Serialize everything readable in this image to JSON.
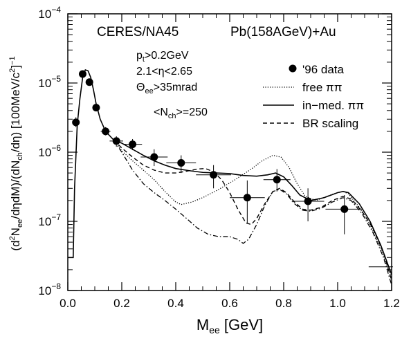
{
  "chart_data": {
    "type": "line",
    "x_axis": {
      "label_main": "M",
      "label_sub": "ee",
      "label_unit": " [GeV]",
      "range": [
        0.0,
        1.2
      ],
      "ticks": [
        {
          "v": 0.0,
          "label": "0.0"
        },
        {
          "v": 0.2,
          "label": "0.2"
        },
        {
          "v": 0.4,
          "label": "0.4"
        },
        {
          "v": 0.6,
          "label": "0.6"
        },
        {
          "v": 0.8,
          "label": "0.8"
        },
        {
          "v": 1.0,
          "label": "1.0"
        },
        {
          "v": 1.2,
          "label": "1.2"
        }
      ]
    },
    "y_axis": {
      "scale": "log",
      "range": [
        1e-08,
        0.0001
      ],
      "label": "(d²N_ee/dηdM)/(dN_ch/dη) [100MeV/c²]⁻¹",
      "ticks": [
        {
          "v": 1e-08,
          "base": "10",
          "exp": "−8"
        },
        {
          "v": 1e-07,
          "base": "10",
          "exp": "−7"
        },
        {
          "v": 1e-06,
          "base": "10",
          "exp": "−6"
        },
        {
          "v": 1e-05,
          "base": "10",
          "exp": "−5"
        },
        {
          "v": 0.0001,
          "base": "10",
          "exp": "−4"
        }
      ]
    },
    "annotations": {
      "experiment": "CERES/NA45",
      "collision": "Pb(158AGeV)+Au",
      "cut_pt": "p_t>0.2GeV",
      "cut_eta": "2.1<η<2.65",
      "cut_theta": "Θ_ee>35mrad",
      "nch": "<N_ch>=250"
    },
    "legend": [
      {
        "label": "'96 data",
        "style": "marker"
      },
      {
        "label": "free ππ",
        "style": "dotted"
      },
      {
        "label": "in−med. ππ",
        "style": "solid"
      },
      {
        "label": "BR scaling",
        "style": "dashed"
      }
    ],
    "data_points": [
      {
        "x": 0.03,
        "y": 2.7e-06,
        "xerr": 0.01,
        "ylo": 2.3e-06,
        "yhi": 3.2e-06
      },
      {
        "x": 0.055,
        "y": 1.35e-05,
        "xerr": 0.01,
        "ylo": 1.2e-05,
        "yhi": 1.5e-05
      },
      {
        "x": 0.08,
        "y": 1.03e-05,
        "xerr": 0.01,
        "ylo": 9.3e-06,
        "yhi": 1.14e-05
      },
      {
        "x": 0.105,
        "y": 4.4e-06,
        "xerr": 0.012,
        "ylo": 4e-06,
        "yhi": 4.9e-06
      },
      {
        "x": 0.14,
        "y": 2e-06,
        "xerr": 0.018,
        "ylo": 1.75e-06,
        "yhi": 2.3e-06
      },
      {
        "x": 0.18,
        "y": 1.45e-06,
        "xerr": 0.025,
        "ylo": 1.2e-06,
        "yhi": 1.7e-06
      },
      {
        "x": 0.24,
        "y": 1.3e-06,
        "xerr": 0.035,
        "ylo": 1.07e-06,
        "yhi": 1.55e-06
      },
      {
        "x": 0.32,
        "y": 8.5e-07,
        "xerr": 0.05,
        "ylo": 6.3e-07,
        "yhi": 1.1e-06
      },
      {
        "x": 0.42,
        "y": 7e-07,
        "xerr": 0.055,
        "ylo": 5e-07,
        "yhi": 9e-07
      },
      {
        "x": 0.54,
        "y": 4.7e-07,
        "xerr": 0.065,
        "ylo": 3e-07,
        "yhi": 6.5e-07
      },
      {
        "x": 0.665,
        "y": 2.2e-07,
        "xerr": 0.065,
        "ylo": 9.5e-08,
        "yhi": 3.9e-07
      },
      {
        "x": 0.775,
        "y": 4e-07,
        "xerr": 0.05,
        "ylo": 2.7e-07,
        "yhi": 5.7e-07
      },
      {
        "x": 0.89,
        "y": 1.95e-07,
        "xerr": 0.06,
        "ylo": 1e-07,
        "yhi": 3e-07
      },
      {
        "x": 1.025,
        "y": 1.5e-07,
        "xerr": 0.07,
        "ylo": 6.5e-08,
        "yhi": 2.4e-07
      },
      {
        "x": 1.16,
        "y": 2.2e-08,
        "xerr": 0.045,
        "ylo": 2.2e-08,
        "yhi": 2.2e-08
      }
    ],
    "curve_common": [
      [
        0.0,
        3e-08
      ],
      [
        0.02,
        3e-08
      ],
      [
        0.025,
        3e-07
      ],
      [
        0.035,
        2.5e-06
      ],
      [
        0.045,
        6e-06
      ],
      [
        0.055,
        1.2e-05
      ],
      [
        0.065,
        1.55e-05
      ],
      [
        0.075,
        1.5e-05
      ],
      [
        0.085,
        1.2e-05
      ],
      [
        0.095,
        8e-06
      ],
      [
        0.105,
        5e-06
      ],
      [
        0.12,
        3e-06
      ],
      [
        0.14,
        2e-06
      ],
      [
        0.17,
        1.5e-06
      ]
    ],
    "series": [
      {
        "name": "free ππ",
        "style": "dotted",
        "points": [
          [
            0.17,
            1.5e-06
          ],
          [
            0.2,
            1.05e-06
          ],
          [
            0.24,
            7.5e-07
          ],
          [
            0.28,
            5.5e-07
          ],
          [
            0.32,
            4e-07
          ],
          [
            0.36,
            2.7e-07
          ],
          [
            0.4,
            1.9e-07
          ],
          [
            0.42,
            1.75e-07
          ],
          [
            0.46,
            1.9e-07
          ],
          [
            0.5,
            2.2e-07
          ],
          [
            0.56,
            2.9e-07
          ],
          [
            0.62,
            4e-07
          ],
          [
            0.68,
            5.7e-07
          ],
          [
            0.72,
            7.5e-07
          ],
          [
            0.76,
            9e-07
          ],
          [
            0.79,
            8.5e-07
          ],
          [
            0.82,
            6e-07
          ],
          [
            0.85,
            3.5e-07
          ],
          [
            0.88,
            2.3e-07
          ],
          [
            0.92,
            2e-07
          ],
          [
            0.96,
            2.3e-07
          ],
          [
            1.0,
            2.6e-07
          ],
          [
            1.02,
            2.7e-07
          ],
          [
            1.04,
            2.5e-07
          ],
          [
            1.08,
            1.6e-07
          ],
          [
            1.12,
            9e-08
          ],
          [
            1.16,
            4e-08
          ],
          [
            1.2,
            1.5e-08
          ]
        ]
      },
      {
        "name": "in−med. ππ",
        "style": "solid",
        "points": [
          [
            0.17,
            1.5e-06
          ],
          [
            0.2,
            1.35e-06
          ],
          [
            0.24,
            1.1e-06
          ],
          [
            0.28,
            9e-07
          ],
          [
            0.32,
            7.5e-07
          ],
          [
            0.36,
            6.5e-07
          ],
          [
            0.4,
            5.8e-07
          ],
          [
            0.45,
            5.4e-07
          ],
          [
            0.5,
            5.1e-07
          ],
          [
            0.55,
            5e-07
          ],
          [
            0.6,
            4.9e-07
          ],
          [
            0.65,
            4.6e-07
          ],
          [
            0.7,
            4.5e-07
          ],
          [
            0.74,
            4.7e-07
          ],
          [
            0.77,
            5e-07
          ],
          [
            0.8,
            4.4e-07
          ],
          [
            0.83,
            3.3e-07
          ],
          [
            0.86,
            2.4e-07
          ],
          [
            0.9,
            2e-07
          ],
          [
            0.95,
            2.2e-07
          ],
          [
            1.0,
            2.6e-07
          ],
          [
            1.02,
            2.7e-07
          ],
          [
            1.04,
            2.6e-07
          ],
          [
            1.08,
            1.8e-07
          ],
          [
            1.12,
            1e-07
          ],
          [
            1.16,
            4.5e-08
          ],
          [
            1.2,
            1.7e-08
          ]
        ]
      },
      {
        "name": "BR scaling",
        "style": "dashed",
        "points": [
          [
            0.17,
            1.5e-06
          ],
          [
            0.2,
            1.15e-06
          ],
          [
            0.24,
            8.5e-07
          ],
          [
            0.28,
            6.5e-07
          ],
          [
            0.32,
            5.5e-07
          ],
          [
            0.36,
            5e-07
          ],
          [
            0.4,
            5e-07
          ],
          [
            0.44,
            5.3e-07
          ],
          [
            0.48,
            5.7e-07
          ],
          [
            0.51,
            5.8e-07
          ],
          [
            0.54,
            5.2e-07
          ],
          [
            0.57,
            4e-07
          ],
          [
            0.6,
            2.6e-07
          ],
          [
            0.63,
            1.5e-07
          ],
          [
            0.66,
            9.5e-08
          ],
          [
            0.68,
            9e-08
          ],
          [
            0.7,
            1.1e-07
          ],
          [
            0.73,
            1.8e-07
          ],
          [
            0.76,
            2.7e-07
          ],
          [
            0.785,
            3e-07
          ],
          [
            0.81,
            2.6e-07
          ],
          [
            0.84,
            1.9e-07
          ],
          [
            0.87,
            1.5e-07
          ],
          [
            0.9,
            1.45e-07
          ],
          [
            0.94,
            1.6e-07
          ],
          [
            0.98,
            2e-07
          ],
          [
            1.02,
            2.3e-07
          ],
          [
            1.05,
            2.1e-07
          ],
          [
            1.09,
            1.4e-07
          ],
          [
            1.13,
            8e-08
          ],
          [
            1.17,
            3.5e-08
          ],
          [
            1.2,
            1.4e-08
          ]
        ]
      },
      {
        "name": "",
        "style": "dashdot",
        "points": [
          [
            0.17,
            1.5e-06
          ],
          [
            0.2,
            1e-06
          ],
          [
            0.24,
            5.5e-07
          ],
          [
            0.28,
            3.5e-07
          ],
          [
            0.32,
            2.6e-07
          ],
          [
            0.36,
            2e-07
          ],
          [
            0.4,
            1.5e-07
          ],
          [
            0.44,
            1.1e-07
          ],
          [
            0.48,
            8e-08
          ],
          [
            0.52,
            6.5e-08
          ],
          [
            0.56,
            6e-08
          ],
          [
            0.6,
            6e-08
          ],
          [
            0.63,
            5.5e-08
          ],
          [
            0.65,
            4.8e-08
          ],
          [
            0.67,
            5.5e-08
          ],
          [
            0.7,
            9e-08
          ],
          [
            0.73,
            1.7e-07
          ],
          [
            0.76,
            2.7e-07
          ],
          [
            0.785,
            2.9e-07
          ],
          [
            0.81,
            2.5e-07
          ],
          [
            0.84,
            1.8e-07
          ],
          [
            0.87,
            1.45e-07
          ],
          [
            0.9,
            1.4e-07
          ],
          [
            0.94,
            1.55e-07
          ],
          [
            0.98,
            1.9e-07
          ],
          [
            1.02,
            2.2e-07
          ],
          [
            1.05,
            2e-07
          ],
          [
            1.09,
            1.3e-07
          ],
          [
            1.13,
            7e-08
          ],
          [
            1.17,
            3e-08
          ],
          [
            1.2,
            1.2e-08
          ]
        ]
      }
    ]
  }
}
